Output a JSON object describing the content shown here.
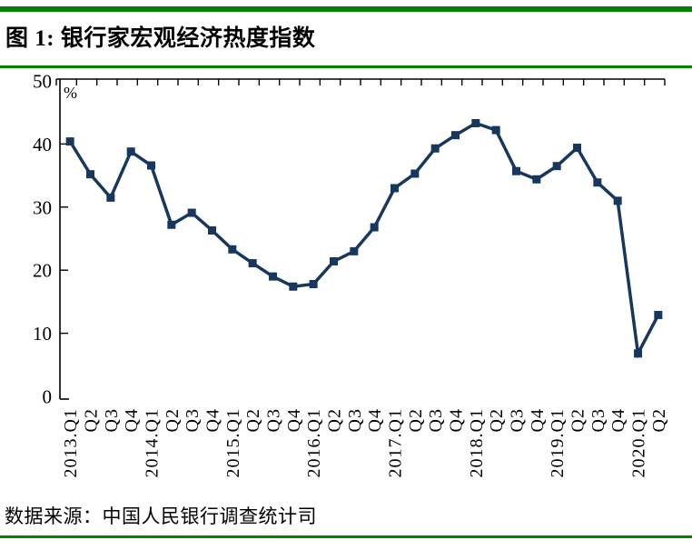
{
  "header": {
    "title": "图 1: 银行家宏观经济热度指数"
  },
  "footer": {
    "source": "数据来源：中国人民银行调查统计司"
  },
  "colors": {
    "rule_green": "#008200",
    "series_line": "#17375E",
    "axis_black": "#000000"
  },
  "chart_data": {
    "type": "line",
    "title": "银行家宏观经济热度指数",
    "unit_label": "%",
    "categories": [
      "2013.Q1",
      "Q2",
      "Q3",
      "Q4",
      "2014.Q1",
      "Q2",
      "Q3",
      "Q4",
      "2015.Q1",
      "Q2",
      "Q3",
      "Q4",
      "2016.Q1",
      "Q2",
      "Q3",
      "Q4",
      "2017.Q1",
      "Q2",
      "Q3",
      "Q4",
      "2018.Q1",
      "Q2",
      "Q3",
      "Q4",
      "2019.Q1",
      "Q2",
      "Q3",
      "Q4",
      "2020.Q1",
      "Q2"
    ],
    "values": [
      40.4,
      35.2,
      31.5,
      38.8,
      36.6,
      27.2,
      29.1,
      26.3,
      23.3,
      21.1,
      19.0,
      17.4,
      17.8,
      21.4,
      23.0,
      26.8,
      33.0,
      35.3,
      39.3,
      41.4,
      43.3,
      42.2,
      35.7,
      34.4,
      36.5,
      39.4,
      33.9,
      31.0,
      6.8,
      12.9
    ],
    "ylim": [
      0,
      50
    ],
    "yticks": [
      0,
      10,
      20,
      30,
      40,
      50
    ],
    "xlabel": "",
    "ylabel": "%",
    "grid": false,
    "legend": false,
    "marker": "square",
    "line_color": "#17375E"
  }
}
